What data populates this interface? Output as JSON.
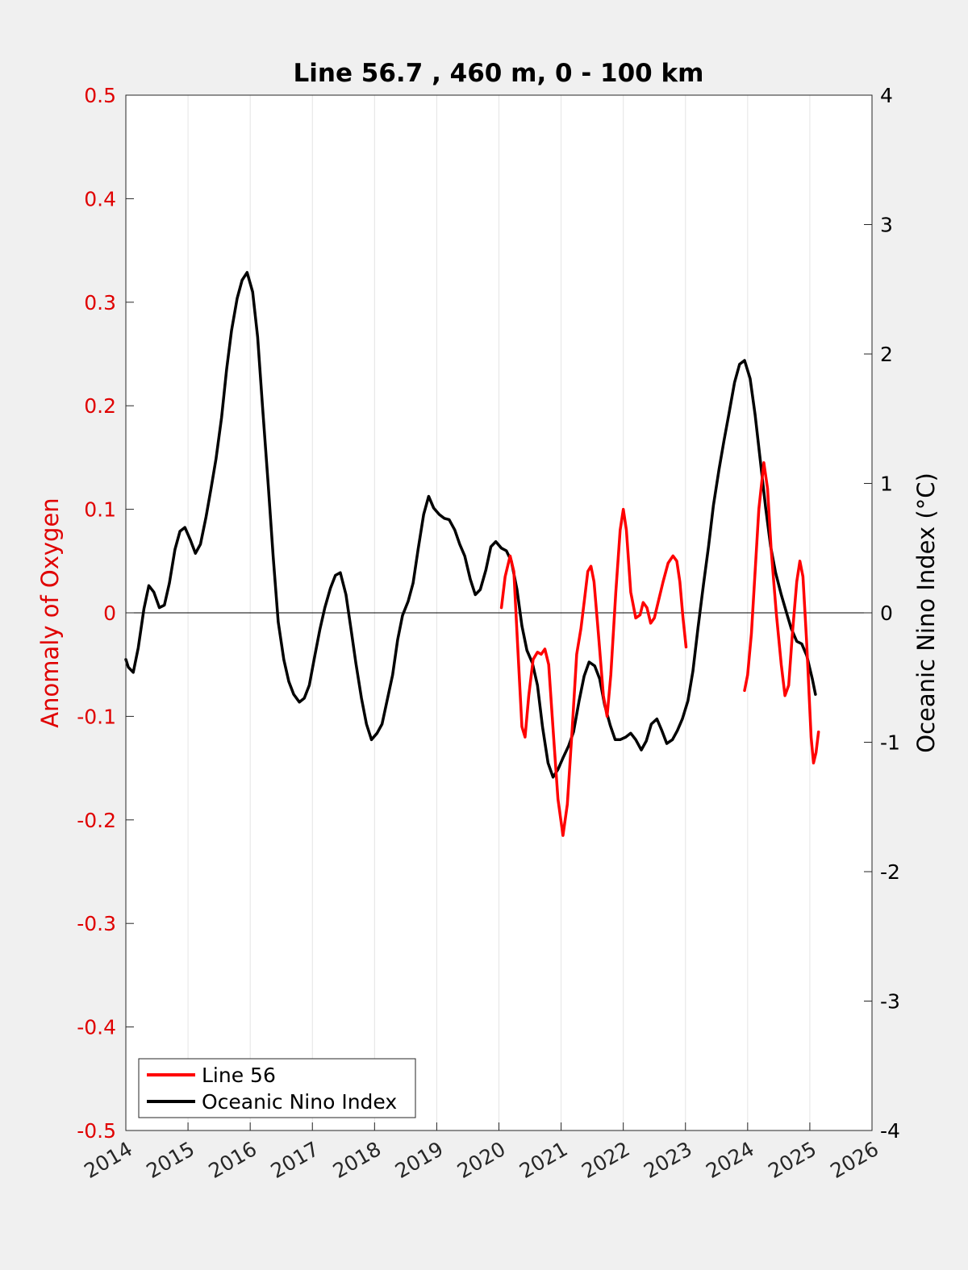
{
  "chart_data": {
    "type": "line",
    "title": "Line 56.7 , 460 m, 0 - 100 km",
    "ylabel_left": "Anomaly of Oxygen",
    "ylabel_right": "Oceanic Nino Index (°C)",
    "xlim": [
      2014,
      2026
    ],
    "ylim_left": [
      -0.5,
      0.5
    ],
    "ylim_right": [
      -4,
      4
    ],
    "x_ticks": [
      "2014",
      "2015",
      "2016",
      "2017",
      "2018",
      "2019",
      "2020",
      "2021",
      "2022",
      "2023",
      "2024",
      "2025",
      "2026"
    ],
    "y_left_ticks": [
      "0.5",
      "0.4",
      "0.3",
      "0.2",
      "0.1",
      "0",
      "-0.1",
      "-0.2",
      "-0.3",
      "-0.4",
      "-0.5"
    ],
    "y_right_ticks": [
      "4",
      "3",
      "2",
      "1",
      "0",
      "-1",
      "-2",
      "-3",
      "-4"
    ],
    "grid": "vertical",
    "legend_position": "bottom-left",
    "colors": {
      "line56": "#ff0000",
      "oni": "#000000",
      "left_axis": "#e00000",
      "background": "#f0f0f0"
    },
    "series": [
      {
        "name": "Line 56",
        "axis": "left",
        "segments": [
          [
            [
              2020.04,
              0.005
            ],
            [
              2020.1,
              0.035
            ],
            [
              2020.18,
              0.055
            ],
            [
              2020.24,
              0.04
            ],
            [
              2020.3,
              -0.03
            ],
            [
              2020.37,
              -0.11
            ],
            [
              2020.42,
              -0.12
            ],
            [
              2020.48,
              -0.08
            ],
            [
              2020.55,
              -0.045
            ],
            [
              2020.62,
              -0.038
            ],
            [
              2020.68,
              -0.04
            ],
            [
              2020.74,
              -0.035
            ],
            [
              2020.8,
              -0.05
            ],
            [
              2020.88,
              -0.12
            ],
            [
              2020.95,
              -0.18
            ],
            [
              2021.03,
              -0.215
            ],
            [
              2021.1,
              -0.185
            ],
            [
              2021.18,
              -0.11
            ],
            [
              2021.25,
              -0.04
            ],
            [
              2021.32,
              -0.015
            ],
            [
              2021.38,
              0.015
            ],
            [
              2021.43,
              0.04
            ],
            [
              2021.48,
              0.045
            ],
            [
              2021.53,
              0.03
            ],
            [
              2021.6,
              -0.02
            ],
            [
              2021.68,
              -0.08
            ],
            [
              2021.74,
              -0.1
            ],
            [
              2021.8,
              -0.06
            ],
            [
              2021.88,
              0.02
            ],
            [
              2021.95,
              0.08
            ],
            [
              2022.0,
              0.1
            ],
            [
              2022.05,
              0.08
            ],
            [
              2022.12,
              0.02
            ],
            [
              2022.2,
              -0.005
            ],
            [
              2022.27,
              -0.002
            ],
            [
              2022.32,
              0.01
            ],
            [
              2022.38,
              0.005
            ],
            [
              2022.44,
              -0.01
            ],
            [
              2022.5,
              -0.005
            ],
            [
              2022.56,
              0.01
            ],
            [
              2022.64,
              0.03
            ],
            [
              2022.72,
              0.048
            ],
            [
              2022.8,
              0.055
            ],
            [
              2022.86,
              0.05
            ],
            [
              2022.91,
              0.03
            ],
            [
              2022.96,
              -0.005
            ],
            [
              2023.01,
              -0.033
            ]
          ],
          [
            [
              2023.95,
              -0.075
            ],
            [
              2024.0,
              -0.06
            ],
            [
              2024.06,
              -0.02
            ],
            [
              2024.12,
              0.04
            ],
            [
              2024.18,
              0.1
            ],
            [
              2024.26,
              0.145
            ],
            [
              2024.32,
              0.12
            ],
            [
              2024.38,
              0.06
            ],
            [
              2024.46,
              0.0
            ],
            [
              2024.54,
              -0.05
            ],
            [
              2024.6,
              -0.08
            ],
            [
              2024.66,
              -0.07
            ],
            [
              2024.72,
              -0.02
            ],
            [
              2024.79,
              0.03
            ],
            [
              2024.84,
              0.05
            ],
            [
              2024.89,
              0.035
            ],
            [
              2024.95,
              -0.03
            ],
            [
              2025.02,
              -0.12
            ],
            [
              2025.06,
              -0.145
            ],
            [
              2025.1,
              -0.135
            ],
            [
              2025.14,
              -0.115
            ]
          ]
        ]
      },
      {
        "name": "Oceanic Nino Index",
        "axis": "right",
        "segments": [
          [
            [
              2014.0,
              -0.36
            ],
            [
              2014.04,
              -0.42
            ],
            [
              2014.12,
              -0.46
            ],
            [
              2014.2,
              -0.27
            ],
            [
              2014.29,
              0.03
            ],
            [
              2014.37,
              0.21
            ],
            [
              2014.45,
              0.16
            ],
            [
              2014.54,
              0.04
            ],
            [
              2014.62,
              0.06
            ],
            [
              2014.7,
              0.23
            ],
            [
              2014.79,
              0.49
            ],
            [
              2014.87,
              0.63
            ],
            [
              2014.95,
              0.66
            ],
            [
              2015.04,
              0.56
            ],
            [
              2015.12,
              0.46
            ],
            [
              2015.2,
              0.53
            ],
            [
              2015.29,
              0.74
            ],
            [
              2015.37,
              0.96
            ],
            [
              2015.45,
              1.19
            ],
            [
              2015.54,
              1.51
            ],
            [
              2015.62,
              1.88
            ],
            [
              2015.7,
              2.18
            ],
            [
              2015.79,
              2.43
            ],
            [
              2015.87,
              2.57
            ],
            [
              2015.95,
              2.63
            ],
            [
              2016.04,
              2.48
            ],
            [
              2016.12,
              2.13
            ],
            [
              2016.2,
              1.58
            ],
            [
              2016.29,
              0.99
            ],
            [
              2016.37,
              0.43
            ],
            [
              2016.45,
              -0.07
            ],
            [
              2016.54,
              -0.36
            ],
            [
              2016.62,
              -0.53
            ],
            [
              2016.7,
              -0.63
            ],
            [
              2016.79,
              -0.69
            ],
            [
              2016.87,
              -0.66
            ],
            [
              2016.95,
              -0.56
            ],
            [
              2017.04,
              -0.33
            ],
            [
              2017.12,
              -0.13
            ],
            [
              2017.2,
              0.04
            ],
            [
              2017.29,
              0.19
            ],
            [
              2017.37,
              0.29
            ],
            [
              2017.45,
              0.31
            ],
            [
              2017.54,
              0.14
            ],
            [
              2017.62,
              -0.12
            ],
            [
              2017.7,
              -0.39
            ],
            [
              2017.79,
              -0.66
            ],
            [
              2017.87,
              -0.86
            ],
            [
              2017.95,
              -0.98
            ],
            [
              2018.04,
              -0.93
            ],
            [
              2018.12,
              -0.86
            ],
            [
              2018.2,
              -0.68
            ],
            [
              2018.29,
              -0.48
            ],
            [
              2018.37,
              -0.21
            ],
            [
              2018.45,
              -0.02
            ],
            [
              2018.54,
              0.09
            ],
            [
              2018.62,
              0.23
            ],
            [
              2018.7,
              0.49
            ],
            [
              2018.79,
              0.76
            ],
            [
              2018.87,
              0.9
            ],
            [
              2018.95,
              0.81
            ],
            [
              2019.04,
              0.76
            ],
            [
              2019.12,
              0.73
            ],
            [
              2019.2,
              0.72
            ],
            [
              2019.29,
              0.64
            ],
            [
              2019.37,
              0.53
            ],
            [
              2019.45,
              0.44
            ],
            [
              2019.54,
              0.26
            ],
            [
              2019.62,
              0.14
            ],
            [
              2019.7,
              0.18
            ],
            [
              2019.79,
              0.33
            ],
            [
              2019.87,
              0.51
            ],
            [
              2019.95,
              0.55
            ],
            [
              2020.04,
              0.5
            ],
            [
              2020.12,
              0.48
            ],
            [
              2020.2,
              0.4
            ],
            [
              2020.29,
              0.18
            ],
            [
              2020.37,
              -0.1
            ],
            [
              2020.45,
              -0.29
            ],
            [
              2020.54,
              -0.39
            ],
            [
              2020.62,
              -0.56
            ],
            [
              2020.7,
              -0.88
            ],
            [
              2020.79,
              -1.16
            ],
            [
              2020.87,
              -1.27
            ],
            [
              2020.95,
              -1.21
            ],
            [
              2021.04,
              -1.11
            ],
            [
              2021.12,
              -1.03
            ],
            [
              2021.2,
              -0.92
            ],
            [
              2021.29,
              -0.68
            ],
            [
              2021.37,
              -0.49
            ],
            [
              2021.45,
              -0.38
            ],
            [
              2021.54,
              -0.41
            ],
            [
              2021.62,
              -0.51
            ],
            [
              2021.7,
              -0.71
            ],
            [
              2021.79,
              -0.87
            ],
            [
              2021.87,
              -0.98
            ],
            [
              2021.95,
              -0.98
            ],
            [
              2022.04,
              -0.96
            ],
            [
              2022.12,
              -0.93
            ],
            [
              2022.2,
              -0.98
            ],
            [
              2022.29,
              -1.06
            ],
            [
              2022.37,
              -0.99
            ],
            [
              2022.45,
              -0.86
            ],
            [
              2022.54,
              -0.82
            ],
            [
              2022.62,
              -0.91
            ],
            [
              2022.7,
              -1.01
            ],
            [
              2022.79,
              -0.98
            ],
            [
              2022.87,
              -0.91
            ],
            [
              2022.95,
              -0.82
            ],
            [
              2023.04,
              -0.68
            ],
            [
              2023.12,
              -0.45
            ],
            [
              2023.2,
              -0.12
            ],
            [
              2023.29,
              0.22
            ],
            [
              2023.37,
              0.51
            ],
            [
              2023.45,
              0.83
            ],
            [
              2023.54,
              1.11
            ],
            [
              2023.62,
              1.33
            ],
            [
              2023.7,
              1.54
            ],
            [
              2023.79,
              1.78
            ],
            [
              2023.87,
              1.92
            ],
            [
              2023.95,
              1.95
            ],
            [
              2024.04,
              1.81
            ],
            [
              2024.12,
              1.53
            ],
            [
              2024.2,
              1.19
            ],
            [
              2024.29,
              0.81
            ],
            [
              2024.37,
              0.51
            ],
            [
              2024.45,
              0.31
            ],
            [
              2024.54,
              0.14
            ],
            [
              2024.62,
              0.01
            ],
            [
              2024.7,
              -0.12
            ],
            [
              2024.79,
              -0.22
            ],
            [
              2024.87,
              -0.24
            ],
            [
              2024.95,
              -0.33
            ],
            [
              2025.04,
              -0.51
            ],
            [
              2025.09,
              -0.63
            ]
          ]
        ]
      }
    ]
  }
}
